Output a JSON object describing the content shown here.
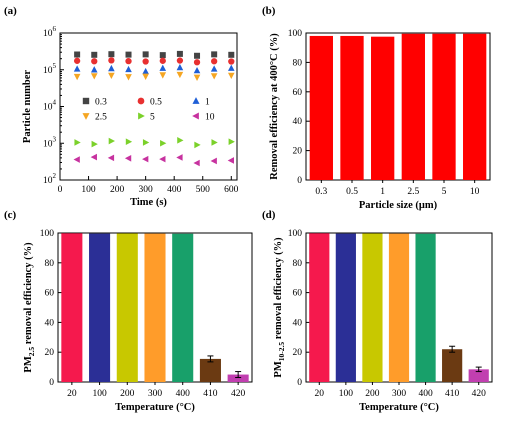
{
  "chart_data": [
    {
      "panel": "(a)",
      "type": "scatter",
      "xlabel": "Time (s)",
      "ylabel": "Particle number",
      "x_ticks": [
        "0",
        "100",
        "200",
        "300",
        "400",
        "500",
        "600"
      ],
      "xlim": [
        0,
        620
      ],
      "ylim_log10": [
        2,
        6
      ],
      "y_tick_labels": [
        {
          "base": "10",
          "exp": "2"
        },
        {
          "base": "10",
          "exp": "3"
        },
        {
          "base": "10",
          "exp": "4"
        },
        {
          "base": "10",
          "exp": "5"
        },
        {
          "base": "10",
          "exp": "6"
        }
      ],
      "x": [
        60,
        120,
        180,
        240,
        300,
        360,
        420,
        480,
        540,
        600
      ],
      "series": [
        {
          "name": "0.3",
          "marker": "square",
          "color": "#444444",
          "values": [
            260000,
            255000,
            265000,
            258000,
            262000,
            250000,
            270000,
            240000,
            262000,
            255000
          ]
        },
        {
          "name": "0.5",
          "marker": "circle",
          "color": "#e83030",
          "values": [
            175000,
            170000,
            180000,
            172000,
            168000,
            175000,
            178000,
            160000,
            170000,
            168000
          ]
        },
        {
          "name": "1",
          "marker": "triangle-up",
          "color": "#1f5fd6",
          "values": [
            105000,
            100000,
            108000,
            102000,
            90000,
            110000,
            115000,
            95000,
            105000,
            110000
          ]
        },
        {
          "name": "2.5",
          "marker": "triangle-down",
          "color": "#f5a623",
          "values": [
            65000,
            68000,
            70000,
            64000,
            66000,
            72000,
            74000,
            62000,
            68000,
            70000
          ]
        },
        {
          "name": "5",
          "marker": "triangle-right",
          "color": "#7bd12a",
          "values": [
            1050,
            950,
            1150,
            1100,
            1050,
            1000,
            1200,
            900,
            1050,
            1100
          ]
        },
        {
          "name": "10",
          "marker": "triangle-left",
          "color": "#c7329f",
          "values": [
            360,
            420,
            400,
            390,
            370,
            370,
            410,
            290,
            330,
            340
          ]
        }
      ]
    },
    {
      "panel": "(b)",
      "type": "bar",
      "xlabel": "Particle size (μm)",
      "ylabel": "Removal efficiency at 400°C (%)",
      "categories": [
        "0.3",
        "0.5",
        "1",
        "2.5",
        "5",
        "10"
      ],
      "values": [
        98,
        98,
        97.5,
        99.5,
        99.5,
        99.5
      ],
      "ylim": [
        0,
        100
      ],
      "yticks": [
        "0",
        "20",
        "40",
        "60",
        "80",
        "100"
      ],
      "color": "#ff0000"
    },
    {
      "panel": "(c)",
      "type": "bar",
      "xlabel": "Temperature (°C)",
      "ylabel": {
        "main": "PM",
        "sub": "2.5",
        "rest": " removal efficiency (%)"
      },
      "categories": [
        "20",
        "100",
        "200",
        "300",
        "400",
        "410",
        "420"
      ],
      "values": [
        99.8,
        99.6,
        99.7,
        99.6,
        99.5,
        15.5,
        5
      ],
      "errors": [
        0,
        0,
        0,
        0,
        0,
        2,
        2
      ],
      "colors": [
        "#f5194d",
        "#2b2f96",
        "#c8c800",
        "#ff9c2a",
        "#18a06a",
        "#6b3a12",
        "#c13fb0"
      ],
      "ylim": [
        0,
        100
      ],
      "yticks": [
        "0",
        "20",
        "40",
        "60",
        "80",
        "100"
      ]
    },
    {
      "panel": "(d)",
      "type": "bar",
      "xlabel": "Temperature (°C)",
      "ylabel": {
        "main": "PM",
        "sub": "10-2.5",
        "rest": " removal efficiency (%)"
      },
      "categories": [
        "20",
        "100",
        "200",
        "300",
        "400",
        "410",
        "420"
      ],
      "values": [
        99.8,
        99.6,
        99.7,
        99.6,
        99.5,
        22,
        8.5
      ],
      "errors": [
        0,
        0,
        0,
        0,
        0,
        2,
        1.5
      ],
      "colors": [
        "#f5194d",
        "#2b2f96",
        "#c8c800",
        "#ff9c2a",
        "#18a06a",
        "#6b3a12",
        "#c13fb0"
      ],
      "ylim": [
        0,
        100
      ],
      "yticks": [
        "0",
        "20",
        "40",
        "60",
        "80",
        "100"
      ]
    }
  ]
}
